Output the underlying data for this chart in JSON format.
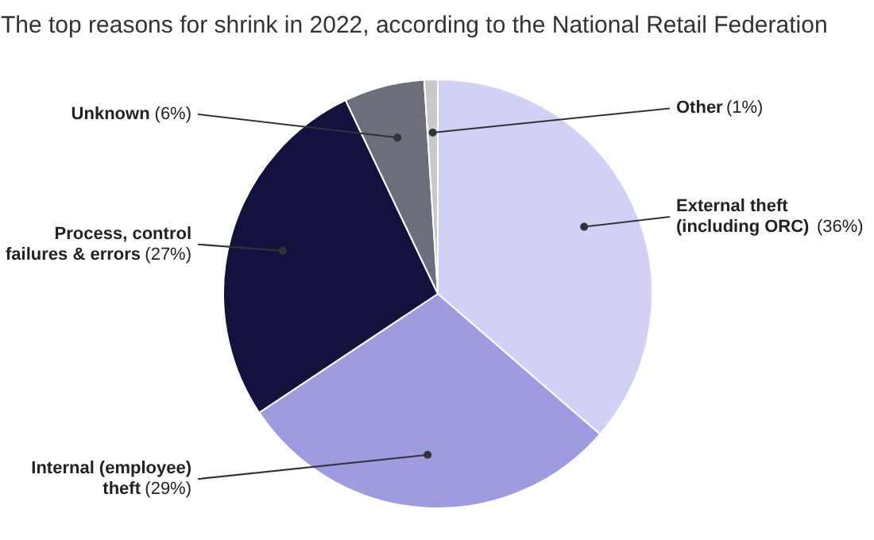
{
  "chart_data": {
    "type": "pie",
    "title": "The top reasons for shrink in 2022, according to the National Retail Federation",
    "categories": [
      "External theft (including ORC)",
      "Internal (employee) theft",
      "Process, control failures & errors",
      "Unknown",
      "Other"
    ],
    "values": [
      36,
      29,
      27,
      6,
      1
    ],
    "value_labels": [
      "(36%)",
      "(29%)",
      "(27%)",
      "(6%)",
      "(1%)"
    ],
    "colors": [
      "#d1d1f6",
      "#9e9ce0",
      "#13123f",
      "#6c6f7b",
      "#c9c9cc"
    ],
    "legend": false
  }
}
